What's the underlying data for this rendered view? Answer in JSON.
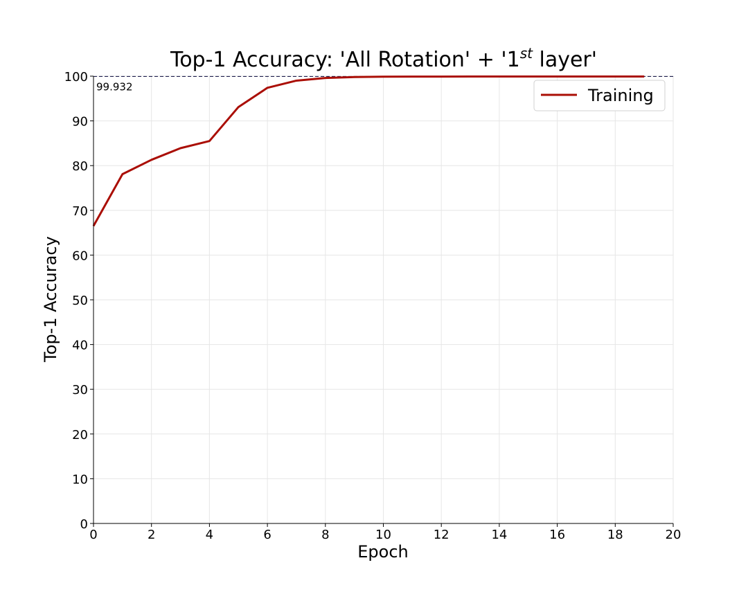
{
  "chart_data": {
    "type": "line",
    "title": {
      "main": "Top-1 Accuracy: 'All Rotation' + '1",
      "superscript": "st",
      "tail": " layer'"
    },
    "xlabel": "Epoch",
    "ylabel": "Top-1 Accuracy",
    "xlim": [
      0,
      20
    ],
    "ylim": [
      0,
      100
    ],
    "xticks": [
      0,
      2,
      4,
      6,
      8,
      10,
      12,
      14,
      16,
      18,
      20
    ],
    "yticks": [
      0,
      10,
      20,
      30,
      40,
      50,
      60,
      70,
      80,
      90,
      100
    ],
    "grid": true,
    "legend": {
      "position": "top-right",
      "entries": [
        "Training"
      ]
    },
    "series": [
      {
        "name": "Training",
        "color": "#aa0e05",
        "x": [
          0,
          1,
          2,
          3,
          4,
          5,
          6,
          7,
          8,
          9,
          10,
          11,
          12,
          13,
          14,
          15,
          16,
          17,
          18,
          19
        ],
        "values": [
          66.5,
          78.1,
          81.3,
          83.9,
          85.5,
          93.1,
          97.4,
          99.0,
          99.6,
          99.8,
          99.88,
          99.9,
          99.91,
          99.92,
          99.925,
          99.93,
          99.932,
          99.932,
          99.932,
          99.932
        ]
      }
    ],
    "reference_line": {
      "value": 99.932,
      "label": "99.932",
      "style": "dashed",
      "color": "#1f1f4d"
    }
  }
}
